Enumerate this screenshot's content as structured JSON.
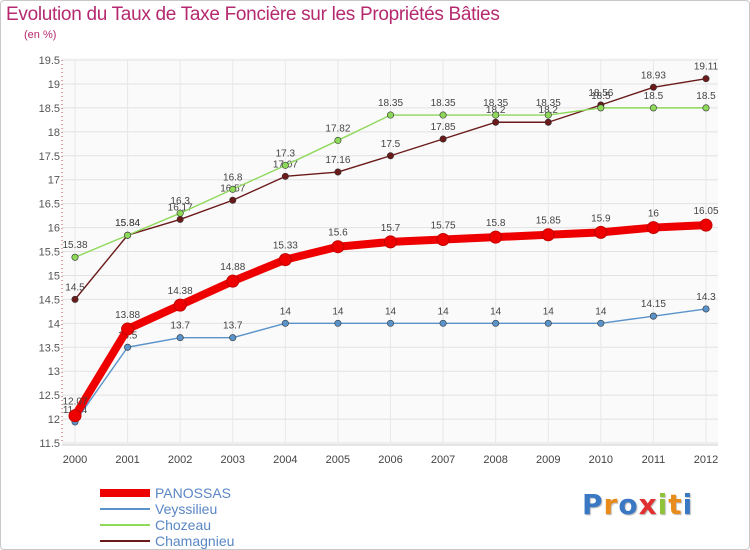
{
  "chart_data": {
    "type": "line",
    "title": "Evolution du Taux de Taxe Foncière sur les Propriétés Bâties",
    "subtitle": "(en %)",
    "xlabel": "",
    "ylabel": "",
    "ylim": [
      11.5,
      19.5
    ],
    "yticks": [
      "11.5",
      "12",
      "12.5",
      "13",
      "13.5",
      "14",
      "14.5",
      "15",
      "15.5",
      "16",
      "16.5",
      "17",
      "17.5",
      "18",
      "18.5",
      "19",
      "19.5"
    ],
    "categories": [
      "2000",
      "2001",
      "2002",
      "2003",
      "2004",
      "2005",
      "2006",
      "2007",
      "2008",
      "2009",
      "2010",
      "2011",
      "2012"
    ],
    "grid": true,
    "series": [
      {
        "name": "Chamagnieu",
        "color": "#6b1a1a",
        "values": [
          14.5,
          15.84,
          16.17,
          16.57,
          17.07,
          17.16,
          17.5,
          17.85,
          18.2,
          18.2,
          18.56,
          18.93,
          19.11
        ],
        "labels": [
          "14.5",
          "15.84",
          "16.17",
          "16.57",
          "17.07",
          "17.16",
          "17.5",
          "17.85",
          "18.2",
          "18.2",
          "18.56",
          "18.93",
          "19.11"
        ]
      },
      {
        "name": "Chozeau",
        "color": "#8ed85a",
        "values": [
          15.38,
          15.84,
          16.3,
          16.8,
          17.3,
          17.82,
          18.35,
          18.35,
          18.35,
          18.35,
          18.5,
          18.5,
          18.5
        ],
        "labels": [
          "15.38",
          "15.84",
          "16.3",
          "16.8",
          "17.3",
          "17.82",
          "18.35",
          "18.35",
          "18.35",
          "18.35",
          "18.5",
          "18.5",
          "18.5"
        ]
      },
      {
        "name": "Veyssilieu",
        "color": "#5a93c9",
        "values": [
          11.94,
          13.5,
          13.7,
          13.7,
          14,
          14,
          14,
          14,
          14,
          14,
          14,
          14.15,
          14.3
        ],
        "labels": [
          "11.94",
          "13.5",
          "13.7",
          "13.7",
          "14",
          "14",
          "14",
          "14",
          "14",
          "14",
          "14",
          "14.15",
          "14.3"
        ]
      },
      {
        "name": "PANOSSAS",
        "color": "#ee0000",
        "values": [
          12.07,
          13.88,
          14.38,
          14.88,
          15.33,
          15.6,
          15.7,
          15.75,
          15.8,
          15.85,
          15.9,
          16,
          16.05
        ],
        "labels": [
          "12.07",
          "13.88",
          "14.38",
          "14.88",
          "15.33",
          "15.6",
          "15.7",
          "15.75",
          "15.8",
          "15.85",
          "15.9",
          "16",
          "16.05"
        ]
      }
    ],
    "legend": [
      "PANOSSAS",
      "Veyssilieu",
      "Chozeau",
      "Chamagnieu"
    ]
  },
  "logo_text": "Proxiti"
}
